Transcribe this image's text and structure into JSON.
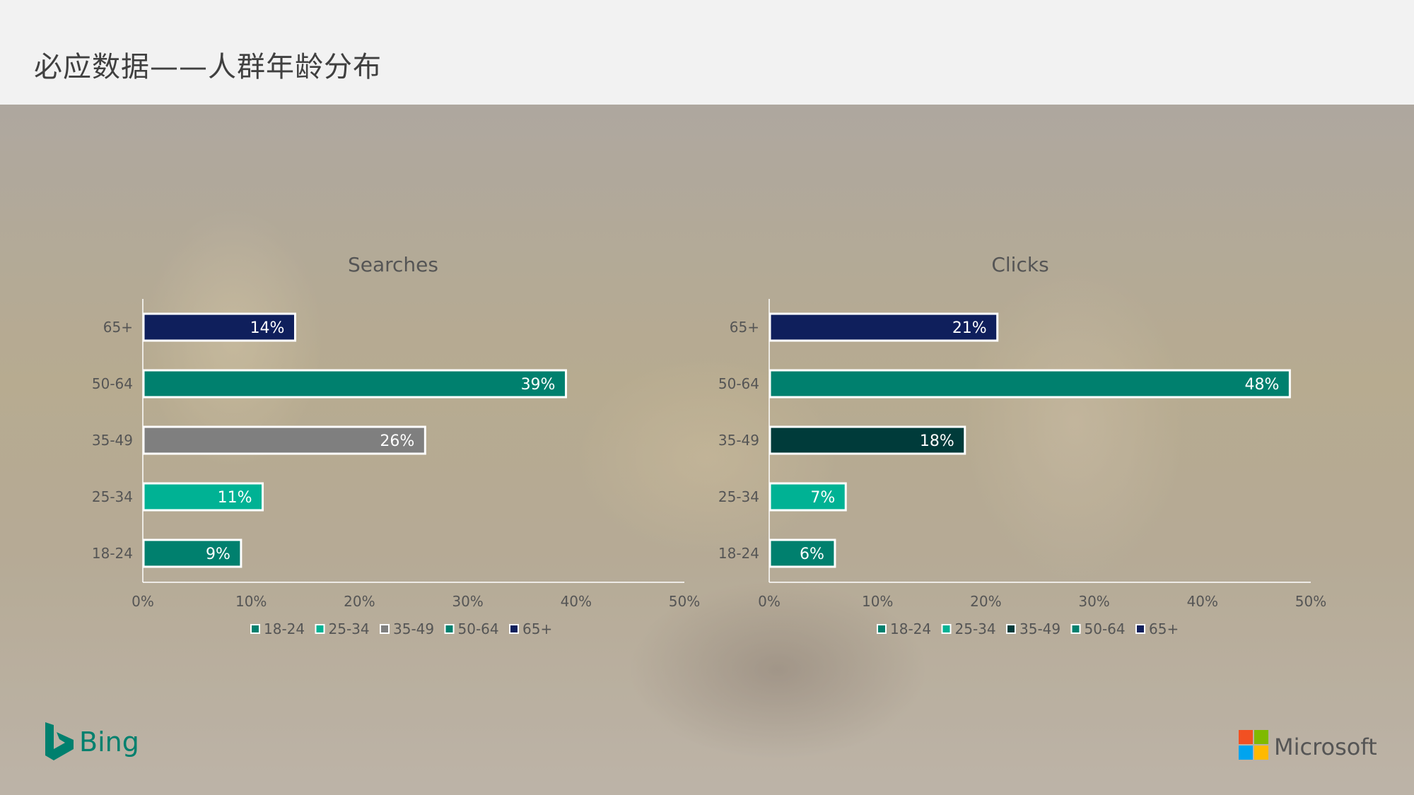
{
  "header": {
    "title": "必应数据——人群年龄分布"
  },
  "colors": {
    "age_18_24": "#00806E",
    "age_25_34": "#00B294",
    "age_35_49_searches": "#7F7F7F",
    "age_35_49_clicks": "#003B3A",
    "age_50_64": "#00806E",
    "age_65_plus": "#0F1F5C"
  },
  "chart_data": [
    {
      "type": "bar",
      "orientation": "horizontal",
      "title": "Searches",
      "categories": [
        "18-24",
        "25-34",
        "35-49",
        "50-64",
        "65+"
      ],
      "values": [
        9,
        11,
        26,
        39,
        14
      ],
      "data_labels": [
        "9%",
        "11%",
        "26%",
        "39%",
        "14%"
      ],
      "xlim": [
        0,
        50
      ],
      "x_ticks": [
        "0%",
        "10%",
        "20%",
        "30%",
        "40%",
        "50%"
      ],
      "legend": [
        "18-24",
        "25-34",
        "35-49",
        "50-64",
        "65+"
      ],
      "legend_position": "bottom",
      "grid": false
    },
    {
      "type": "bar",
      "orientation": "horizontal",
      "title": "Clicks",
      "categories": [
        "18-24",
        "25-34",
        "35-49",
        "50-64",
        "65+"
      ],
      "values": [
        6,
        7,
        18,
        48,
        21
      ],
      "data_labels": [
        "6%",
        "7%",
        "18%",
        "48%",
        "21%"
      ],
      "xlim": [
        0,
        50
      ],
      "x_ticks": [
        "0%",
        "10%",
        "20%",
        "30%",
        "40%",
        "50%"
      ],
      "legend": [
        "18-24",
        "25-34",
        "35-49",
        "50-64",
        "65+"
      ],
      "legend_position": "bottom",
      "grid": false
    }
  ],
  "logos": {
    "bing": "Bing",
    "microsoft": "Microsoft"
  }
}
